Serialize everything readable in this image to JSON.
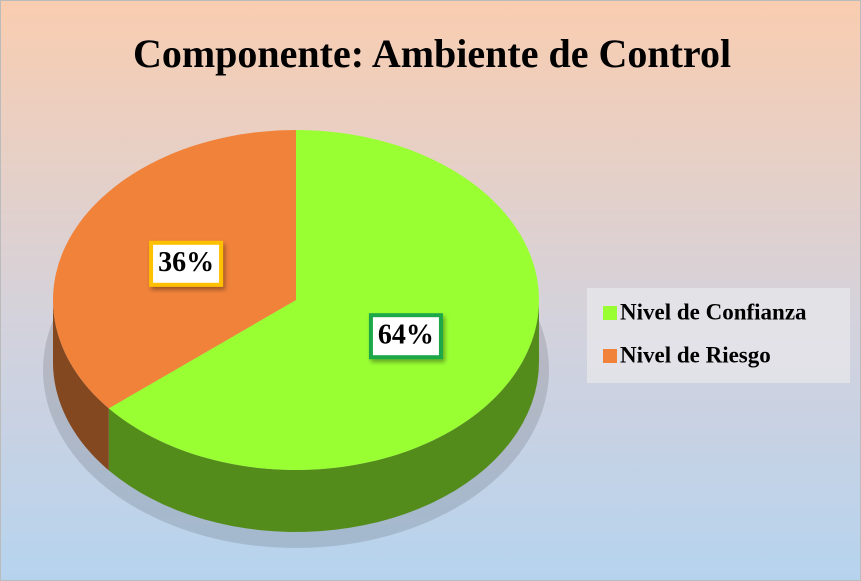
{
  "chart_data": {
    "type": "pie",
    "title": "Componente: Ambiente de Control",
    "categories": [
      "Nivel de Confianza",
      "Nivel de Riesgo"
    ],
    "values": [
      64,
      36
    ],
    "value_labels": [
      "64%",
      "36%"
    ],
    "colors": [
      "#99ff33",
      "#f0823a"
    ],
    "legend": "right"
  }
}
